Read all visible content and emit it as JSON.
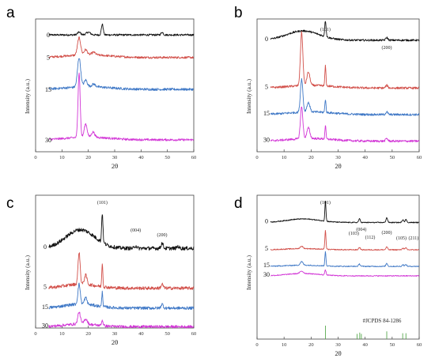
{
  "colors": {
    "0": "#111111",
    "5": "#d2504a",
    "15": "#3f78c6",
    "30": "#d236d6",
    "ref": "#58a84e"
  },
  "chart_data": [
    {
      "type": "line",
      "panel": "a",
      "xlabel": "2θ",
      "ylabel": "Intensity (a.u.)",
      "xlim": [
        0,
        60
      ],
      "xticks": [
        0,
        10,
        20,
        30,
        40,
        50,
        60
      ],
      "grid": false,
      "series": [
        {
          "name": "0",
          "color": "#111111",
          "baseline": 0.88,
          "hump": [
            0,
            20,
            10
          ],
          "peaks": [
            [
              16.5,
              0.02,
              0.6
            ],
            [
              20,
              0.02,
              0.8
            ],
            [
              25.3,
              0.08,
              0.35
            ],
            [
              48,
              0.02,
              0.4
            ]
          ],
          "noise": 0.007
        },
        {
          "name": "5",
          "color": "#d2504a",
          "baseline": 0.71,
          "hump": [
            0.02,
            20,
            8
          ],
          "peaks": [
            [
              16.5,
              0.13,
              0.6
            ],
            [
              19,
              0.04,
              0.6
            ],
            [
              22,
              0.02,
              0.7
            ]
          ],
          "noise": 0.008
        },
        {
          "name": "15",
          "color": "#3f78c6",
          "baseline": 0.47,
          "hump": [
            0.02,
            20,
            8
          ],
          "peaks": [
            [
              16.5,
              0.22,
              0.6
            ],
            [
              19,
              0.05,
              0.6
            ],
            [
              22,
              0.02,
              0.7
            ]
          ],
          "noise": 0.009
        },
        {
          "name": "30",
          "color": "#d236d6",
          "baseline": 0.09,
          "hump": [
            0.02,
            20,
            8
          ],
          "peaks": [
            [
              16.5,
              0.49,
              0.4
            ],
            [
              19,
              0.1,
              0.55
            ],
            [
              21.8,
              0.04,
              0.6
            ]
          ],
          "noise": 0.008
        }
      ]
    },
    {
      "type": "line",
      "panel": "b",
      "xlabel": "2θ",
      "ylabel": "Intensity (a.u.)",
      "xlim": [
        0,
        60
      ],
      "xticks": [
        0,
        10,
        20,
        30,
        40,
        50,
        60
      ],
      "grid": false,
      "annotations": [
        {
          "text": "(101)",
          "x": 25.3
        },
        {
          "text": "(200)",
          "x": 48
        }
      ],
      "series": [
        {
          "name": "0",
          "color": "#111111",
          "baseline": 0.84,
          "hump": [
            0.07,
            17,
            6
          ],
          "peaks": [
            [
              25.3,
              0.12,
              0.25
            ],
            [
              48,
              0.02,
              0.4
            ]
          ],
          "noise": 0.007
        },
        {
          "name": "5",
          "color": "#d2504a",
          "baseline": 0.48,
          "hump": [
            0.02,
            20,
            8
          ],
          "peaks": [
            [
              16.5,
              0.4,
              0.45
            ],
            [
              19,
              0.1,
              0.55
            ],
            [
              25.3,
              0.15,
              0.2
            ],
            [
              48,
              0.02,
              0.4
            ]
          ],
          "noise": 0.008
        },
        {
          "name": "15",
          "color": "#3f78c6",
          "baseline": 0.28,
          "hump": [
            0.02,
            20,
            8
          ],
          "peaks": [
            [
              16.5,
              0.25,
              0.45
            ],
            [
              19,
              0.07,
              0.55
            ],
            [
              25.3,
              0.1,
              0.2
            ],
            [
              48,
              0.02,
              0.4
            ]
          ],
          "noise": 0.008
        },
        {
          "name": "30",
          "color": "#d236d6",
          "baseline": 0.08,
          "hump": [
            0.02,
            20,
            8
          ],
          "peaks": [
            [
              16.5,
              0.24,
              0.45
            ],
            [
              19,
              0.08,
              0.55
            ],
            [
              25.3,
              0.1,
              0.2
            ],
            [
              48,
              0.02,
              0.4
            ]
          ],
          "noise": 0.008
        }
      ]
    },
    {
      "type": "line",
      "panel": "c",
      "xlabel": "2θ",
      "ylabel": "Intensity (a.u.)",
      "xlim": [
        0,
        60
      ],
      "xticks": [
        0,
        10,
        20,
        30,
        40,
        50,
        60
      ],
      "grid": false,
      "annotations": [
        {
          "text": "(101)",
          "x": 25.3
        },
        {
          "text": "(004)",
          "x": 38
        },
        {
          "text": "(200)",
          "x": 48
        }
      ],
      "series": [
        {
          "name": "0",
          "color": "#111111",
          "baseline": 0.6,
          "hump": [
            0.14,
            17,
            5.5
          ],
          "peaks": [
            [
              25.3,
              0.22,
              0.25
            ],
            [
              38,
              0.02,
              0.4
            ],
            [
              48,
              0.04,
              0.4
            ],
            [
              54,
              0.015,
              0.4
            ]
          ],
          "noise": 0.014
        },
        {
          "name": "5",
          "color": "#d2504a",
          "baseline": 0.3,
          "hump": [
            0.03,
            17,
            6
          ],
          "peaks": [
            [
              16.5,
              0.24,
              0.4
            ],
            [
              19,
              0.07,
              0.5
            ],
            [
              25.3,
              0.18,
              0.2
            ],
            [
              48,
              0.03,
              0.4
            ]
          ],
          "noise": 0.012
        },
        {
          "name": "15",
          "color": "#3f78c6",
          "baseline": 0.15,
          "hump": [
            0.03,
            17,
            6
          ],
          "peaks": [
            [
              16.5,
              0.15,
              0.45
            ],
            [
              19,
              0.05,
              0.5
            ],
            [
              25.3,
              0.11,
              0.2
            ],
            [
              48,
              0.03,
              0.4
            ]
          ],
          "noise": 0.011
        },
        {
          "name": "30",
          "color": "#d236d6",
          "baseline": 0.01,
          "hump": [
            0.02,
            17,
            6
          ],
          "peaks": [
            [
              16.5,
              0.09,
              0.5
            ],
            [
              19,
              0.04,
              0.6
            ],
            [
              25.3,
              0.04,
              0.3
            ]
          ],
          "noise": 0.01
        }
      ]
    },
    {
      "type": "line",
      "panel": "d",
      "xlabel": "2θ",
      "ylabel": "Intensity (a.u.)",
      "xlim": [
        0,
        60
      ],
      "xticks": [
        0,
        10,
        20,
        30,
        40,
        50,
        60
      ],
      "grid": false,
      "annotations": [
        {
          "text": "(101)",
          "x": 25.3
        },
        {
          "text": "(103)",
          "x": 37
        },
        {
          "text": "(004)",
          "x": 38
        },
        {
          "text": "(112)",
          "x": 39.5
        },
        {
          "text": "(200)",
          "x": 48
        },
        {
          "text": "(105)",
          "x": 54
        },
        {
          "text": "(211)",
          "x": 55
        }
      ],
      "reference": {
        "label": "#JCPDS 84-1286",
        "lines": [
          [
            25.3,
            1.0
          ],
          [
            37,
            0.35
          ],
          [
            38,
            0.45
          ],
          [
            38.6,
            0.35
          ],
          [
            48,
            0.55
          ],
          [
            53.9,
            0.4
          ],
          [
            55.1,
            0.4
          ]
        ]
      },
      "series": [
        {
          "name": "0",
          "color": "#111111",
          "baseline": 0.77,
          "hump": [
            0.03,
            17,
            6
          ],
          "peaks": [
            [
              25.3,
              0.17,
              0.2
            ],
            [
              37.9,
              0.03,
              0.3
            ],
            [
              48,
              0.04,
              0.3
            ],
            [
              54,
              0.025,
              0.3
            ],
            [
              55.1,
              0.025,
              0.3
            ]
          ],
          "noise": 0.004
        },
        {
          "name": "5",
          "color": "#d2504a",
          "baseline": 0.54,
          "hump": [
            0.01,
            17,
            6
          ],
          "peaks": [
            [
              16.5,
              0.02,
              0.5
            ],
            [
              25.3,
              0.16,
              0.2
            ],
            [
              37.9,
              0.02,
              0.3
            ],
            [
              48,
              0.025,
              0.3
            ],
            [
              54,
              0.015,
              0.3
            ],
            [
              55.1,
              0.015,
              0.3
            ]
          ],
          "noise": 0.004
        },
        {
          "name": "15",
          "color": "#3f78c6",
          "baseline": 0.4,
          "hump": [
            0.01,
            17,
            6
          ],
          "peaks": [
            [
              16.5,
              0.03,
              0.5
            ],
            [
              25.3,
              0.12,
              0.2
            ],
            [
              37.9,
              0.02,
              0.3
            ],
            [
              48,
              0.025,
              0.3
            ],
            [
              54,
              0.015,
              0.3
            ],
            [
              55.1,
              0.015,
              0.3
            ]
          ],
          "noise": 0.004
        },
        {
          "name": "30",
          "color": "#d236d6",
          "baseline": 0.32,
          "hump": [
            0.02,
            17,
            6
          ],
          "peaks": [
            [
              16.5,
              0.02,
              0.6
            ],
            [
              25.3,
              0.04,
              0.25
            ]
          ],
          "noise": 0.004
        }
      ]
    }
  ]
}
